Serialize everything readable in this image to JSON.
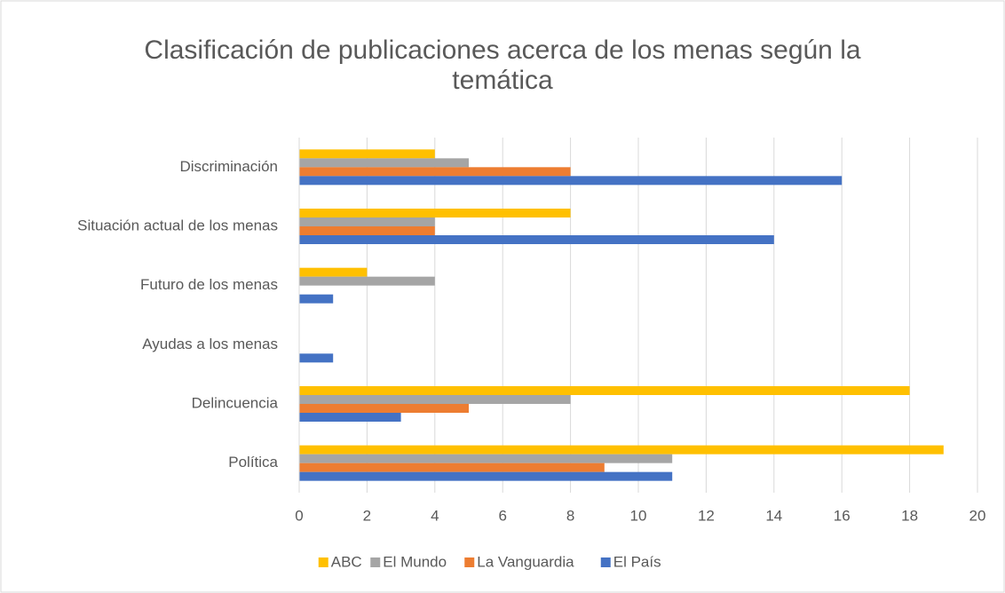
{
  "chart_data": {
    "type": "bar",
    "orientation": "horizontal",
    "title": "Clasificación de publicaciones acerca de los menas según la temática",
    "categories": [
      "Discriminación",
      "Situación actual de los menas",
      "Futuro de los menas",
      "Ayudas a los menas",
      "Delincuencia",
      "Política"
    ],
    "series": [
      {
        "name": "ABC",
        "color": "#ffc000",
        "values": [
          4,
          8,
          2,
          0,
          18,
          19
        ]
      },
      {
        "name": "El Mundo",
        "color": "#a5a5a5",
        "values": [
          5,
          4,
          4,
          0,
          8,
          11
        ]
      },
      {
        "name": "La Vanguardia",
        "color": "#ed7d31",
        "values": [
          8,
          4,
          0,
          0,
          5,
          9
        ]
      },
      {
        "name": "El País",
        "color": "#4472c4",
        "values": [
          16,
          14,
          1,
          1,
          3,
          11
        ]
      }
    ],
    "xlim": [
      0,
      20
    ],
    "xticks": [
      0,
      2,
      4,
      6,
      8,
      10,
      12,
      14,
      16,
      18,
      20
    ],
    "grid": true,
    "legend": "bottom"
  }
}
